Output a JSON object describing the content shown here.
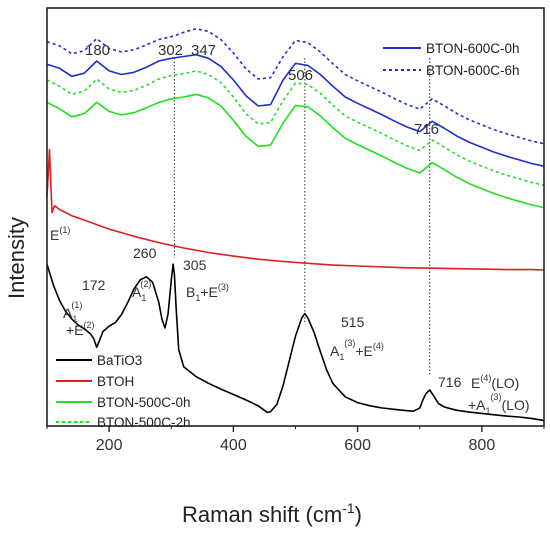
{
  "chart_data": {
    "type": "line",
    "xlabel": "Raman shift (cm-1)",
    "ylabel": "Intensity",
    "xlim": [
      100,
      900
    ],
    "xticks": [
      200,
      400,
      600,
      800
    ],
    "grid": false,
    "legends": [
      {
        "placement": "top-right",
        "entries": [
          {
            "name": "BTON-600C-0h",
            "color": "#1f2fd0",
            "dash": "solid"
          },
          {
            "name": "BTON-600C-6h",
            "color": "#1f2fd0",
            "dash": "dotted"
          }
        ]
      },
      {
        "placement": "bottom-left",
        "entries": [
          {
            "name": "BaTiO3",
            "color": "#000000",
            "dash": "solid"
          },
          {
            "name": "BTOH",
            "color": "#dd1f1f",
            "dash": "solid"
          },
          {
            "name": "BTON-500C-0h",
            "color": "#1fe01f",
            "dash": "solid"
          },
          {
            "name": "BTON-500C-2h",
            "color": "#1fe01f",
            "dash": "dotted"
          }
        ]
      }
    ],
    "series": [
      {
        "name": "BTON-600C-6h",
        "color": "#1f2fd0",
        "dash": "dotted",
        "x": [
          100,
          120,
          140,
          160,
          180,
          200,
          220,
          240,
          260,
          280,
          300,
          320,
          340,
          360,
          380,
          400,
          420,
          440,
          460,
          480,
          500,
          520,
          540,
          560,
          580,
          600,
          620,
          640,
          660,
          680,
          700,
          720,
          740,
          760,
          780,
          800,
          820,
          840,
          860,
          880,
          900
        ],
        "y": [
          8.35,
          8.26,
          8.08,
          8.15,
          8.42,
          8.2,
          8.12,
          8.17,
          8.28,
          8.4,
          8.46,
          8.56,
          8.64,
          8.58,
          8.4,
          8.1,
          7.75,
          7.52,
          7.55,
          8.02,
          8.38,
          8.33,
          8.12,
          7.86,
          7.62,
          7.48,
          7.35,
          7.22,
          7.08,
          6.95,
          6.85,
          7.08,
          6.92,
          6.75,
          6.61,
          6.5,
          6.39,
          6.3,
          6.22,
          6.14,
          6.08
        ]
      },
      {
        "name": "BTON-600C-0h",
        "color": "#1f2fd0",
        "dash": "solid",
        "x": [
          100,
          120,
          140,
          160,
          180,
          200,
          220,
          240,
          260,
          280,
          300,
          320,
          340,
          360,
          380,
          400,
          420,
          440,
          460,
          480,
          500,
          520,
          540,
          560,
          580,
          600,
          620,
          640,
          660,
          680,
          700,
          720,
          740,
          760,
          780,
          800,
          820,
          840,
          860,
          880,
          900
        ],
        "y": [
          7.85,
          7.76,
          7.58,
          7.65,
          7.92,
          7.7,
          7.62,
          7.67,
          7.78,
          7.92,
          7.98,
          8.02,
          8.06,
          7.98,
          7.8,
          7.5,
          7.15,
          6.92,
          6.95,
          7.5,
          7.87,
          7.82,
          7.62,
          7.36,
          7.12,
          6.98,
          6.85,
          6.72,
          6.58,
          6.45,
          6.35,
          6.58,
          6.42,
          6.25,
          6.11,
          6.0,
          5.89,
          5.8,
          5.72,
          5.64,
          5.58
        ]
      },
      {
        "name": "BTON-500C-2h",
        "color": "#1fe01f",
        "dash": "dotted",
        "x": [
          100,
          120,
          140,
          160,
          180,
          200,
          220,
          240,
          260,
          280,
          300,
          320,
          340,
          360,
          380,
          400,
          420,
          440,
          460,
          480,
          500,
          520,
          540,
          560,
          580,
          600,
          620,
          640,
          660,
          680,
          700,
          720,
          740,
          760,
          780,
          800,
          820,
          840,
          860,
          880,
          900
        ],
        "y": [
          7.5,
          7.36,
          7.18,
          7.25,
          7.52,
          7.3,
          7.22,
          7.27,
          7.38,
          7.52,
          7.6,
          7.64,
          7.7,
          7.62,
          7.44,
          7.12,
          6.75,
          6.52,
          6.55,
          7.04,
          7.43,
          7.4,
          7.2,
          6.94,
          6.7,
          6.56,
          6.43,
          6.3,
          6.16,
          6.03,
          5.93,
          6.16,
          6.0,
          5.83,
          5.69,
          5.58,
          5.47,
          5.38,
          5.3,
          5.22,
          5.16
        ]
      },
      {
        "name": "BTON-500C-0h",
        "color": "#1fe01f",
        "dash": "solid",
        "x": [
          100,
          120,
          140,
          160,
          180,
          200,
          220,
          240,
          260,
          280,
          300,
          320,
          340,
          360,
          380,
          400,
          420,
          440,
          460,
          480,
          500,
          520,
          540,
          560,
          580,
          600,
          620,
          640,
          660,
          680,
          700,
          720,
          740,
          760,
          780,
          800,
          820,
          840,
          860,
          880,
          900
        ],
        "y": [
          7.0,
          6.86,
          6.68,
          6.75,
          7.0,
          6.8,
          6.72,
          6.77,
          6.88,
          7.0,
          7.08,
          7.12,
          7.18,
          7.1,
          6.92,
          6.6,
          6.25,
          6.02,
          6.05,
          6.54,
          6.93,
          6.9,
          6.7,
          6.44,
          6.2,
          6.06,
          5.93,
          5.8,
          5.66,
          5.53,
          5.43,
          5.66,
          5.5,
          5.33,
          5.19,
          5.08,
          4.97,
          4.88,
          4.8,
          4.72,
          4.66
        ]
      },
      {
        "name": "BTOH",
        "color": "#dd1f1f",
        "dash": "solid",
        "x": [
          100,
          104,
          108,
          112,
          120,
          140,
          160,
          180,
          200,
          240,
          280,
          320,
          360,
          400,
          440,
          480,
          520,
          560,
          600,
          640,
          680,
          720,
          760,
          800,
          840,
          880,
          900
        ],
        "y": [
          4.9,
          5.95,
          4.55,
          4.7,
          4.62,
          4.48,
          4.38,
          4.28,
          4.18,
          4.02,
          3.88,
          3.76,
          3.66,
          3.58,
          3.51,
          3.46,
          3.42,
          3.38,
          3.36,
          3.34,
          3.32,
          3.31,
          3.3,
          3.29,
          3.28,
          3.28,
          3.27
        ]
      },
      {
        "name": "BaTiO3",
        "color": "#000000",
        "dash": "solid",
        "x": [
          100,
          110,
          120,
          130,
          140,
          150,
          160,
          170,
          175,
          180,
          185,
          190,
          200,
          210,
          220,
          230,
          240,
          250,
          260,
          270,
          280,
          285,
          290,
          295,
          300,
          303,
          305,
          308,
          312,
          320,
          340,
          360,
          380,
          400,
          420,
          440,
          450,
          455,
          460,
          470,
          480,
          490,
          500,
          510,
          515,
          520,
          530,
          540,
          550,
          560,
          580,
          600,
          620,
          640,
          660,
          680,
          690,
          700,
          705,
          710,
          716,
          722,
          730,
          740,
          760,
          780,
          800,
          820,
          840,
          860,
          880,
          900
        ],
        "y": [
          3.4,
          2.95,
          2.6,
          2.35,
          2.18,
          2.05,
          1.96,
          1.85,
          1.75,
          1.55,
          1.72,
          1.9,
          2.02,
          2.1,
          2.28,
          2.55,
          2.85,
          3.05,
          3.12,
          3.0,
          2.55,
          2.18,
          1.98,
          2.3,
          3.05,
          3.4,
          3.18,
          2.4,
          1.5,
          1.12,
          0.9,
          0.75,
          0.62,
          0.5,
          0.38,
          0.25,
          0.15,
          0.1,
          0.12,
          0.28,
          0.7,
          1.25,
          1.8,
          2.2,
          2.3,
          2.2,
          1.88,
          1.45,
          1.05,
          0.75,
          0.45,
          0.32,
          0.25,
          0.2,
          0.17,
          0.14,
          0.13,
          0.2,
          0.38,
          0.52,
          0.6,
          0.48,
          0.3,
          0.22,
          0.15,
          0.11,
          0.08,
          0.05,
          0.02,
          0.0,
          -0.03,
          -0.08
        ]
      }
    ],
    "reference_lines_x": [
      305,
      515,
      716
    ],
    "peak_labels_top": [
      "180",
      "302",
      "347",
      "506",
      "716"
    ],
    "peak_labels_bottom": {
      "e1": "E",
      "e1_sup": "(1)",
      "p172": "172",
      "a1": "A",
      "a1_sub": "1",
      "a1_sup": "(1)",
      "a1_plus": "+E",
      "a1_plus_sup": "(2)",
      "p260": "260",
      "a12": "A",
      "a12_sub": "1",
      "a12_sup": "(2)",
      "p305": "305",
      "b1": "B",
      "b1_sub": "1",
      "b1_tail": "+E",
      "b1_tail_sup": "(3)",
      "p515": "515",
      "a13": "A",
      "a13_sub": "1",
      "a13_sup": "(3)",
      "a13_tail": "+E",
      "a13_tail_sup": "(4)",
      "p716": "716",
      "e4": "E",
      "e4_sup": "(4)",
      "e4_tail": "(LO)",
      "a14": "+A",
      "a14_sub": "1",
      "a14_sup": "(3)",
      "a14_tail": "(LO)"
    }
  },
  "x_axis_title": {
    "main": "Raman shift (cm",
    "sup": "-1",
    "close": ")"
  },
  "y_axis_title": "Intensity"
}
